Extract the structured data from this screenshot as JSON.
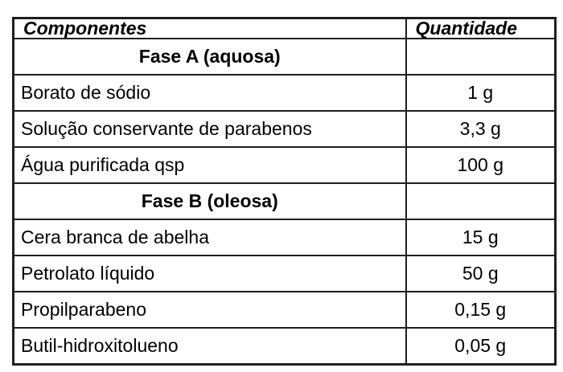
{
  "table": {
    "columns": [
      "Componentes",
      "Quantidade"
    ],
    "rows": [
      {
        "type": "section",
        "label": "Fase A (aquosa)"
      },
      {
        "type": "data",
        "component": "Borato de sódio",
        "quantity": "1 g"
      },
      {
        "type": "data",
        "component": "Solução conservante de parabenos",
        "quantity": "3,3 g"
      },
      {
        "type": "data",
        "component": "Água purificada qsp",
        "quantity": "100 g"
      },
      {
        "type": "section",
        "label": "Fase B (oleosa)"
      },
      {
        "type": "data",
        "component": "Cera branca de abelha",
        "quantity": "15 g"
      },
      {
        "type": "data",
        "component": "Petrolato líquido",
        "quantity": "50 g"
      },
      {
        "type": "data",
        "component": "Propilparabeno",
        "quantity": "0,15 g"
      },
      {
        "type": "data",
        "component": "Butil-hidroxitolueno",
        "quantity": "0,05 g"
      }
    ],
    "colors": {
      "border": "#1f1f1f",
      "text": "#000000",
      "background": "#ffffff"
    }
  }
}
